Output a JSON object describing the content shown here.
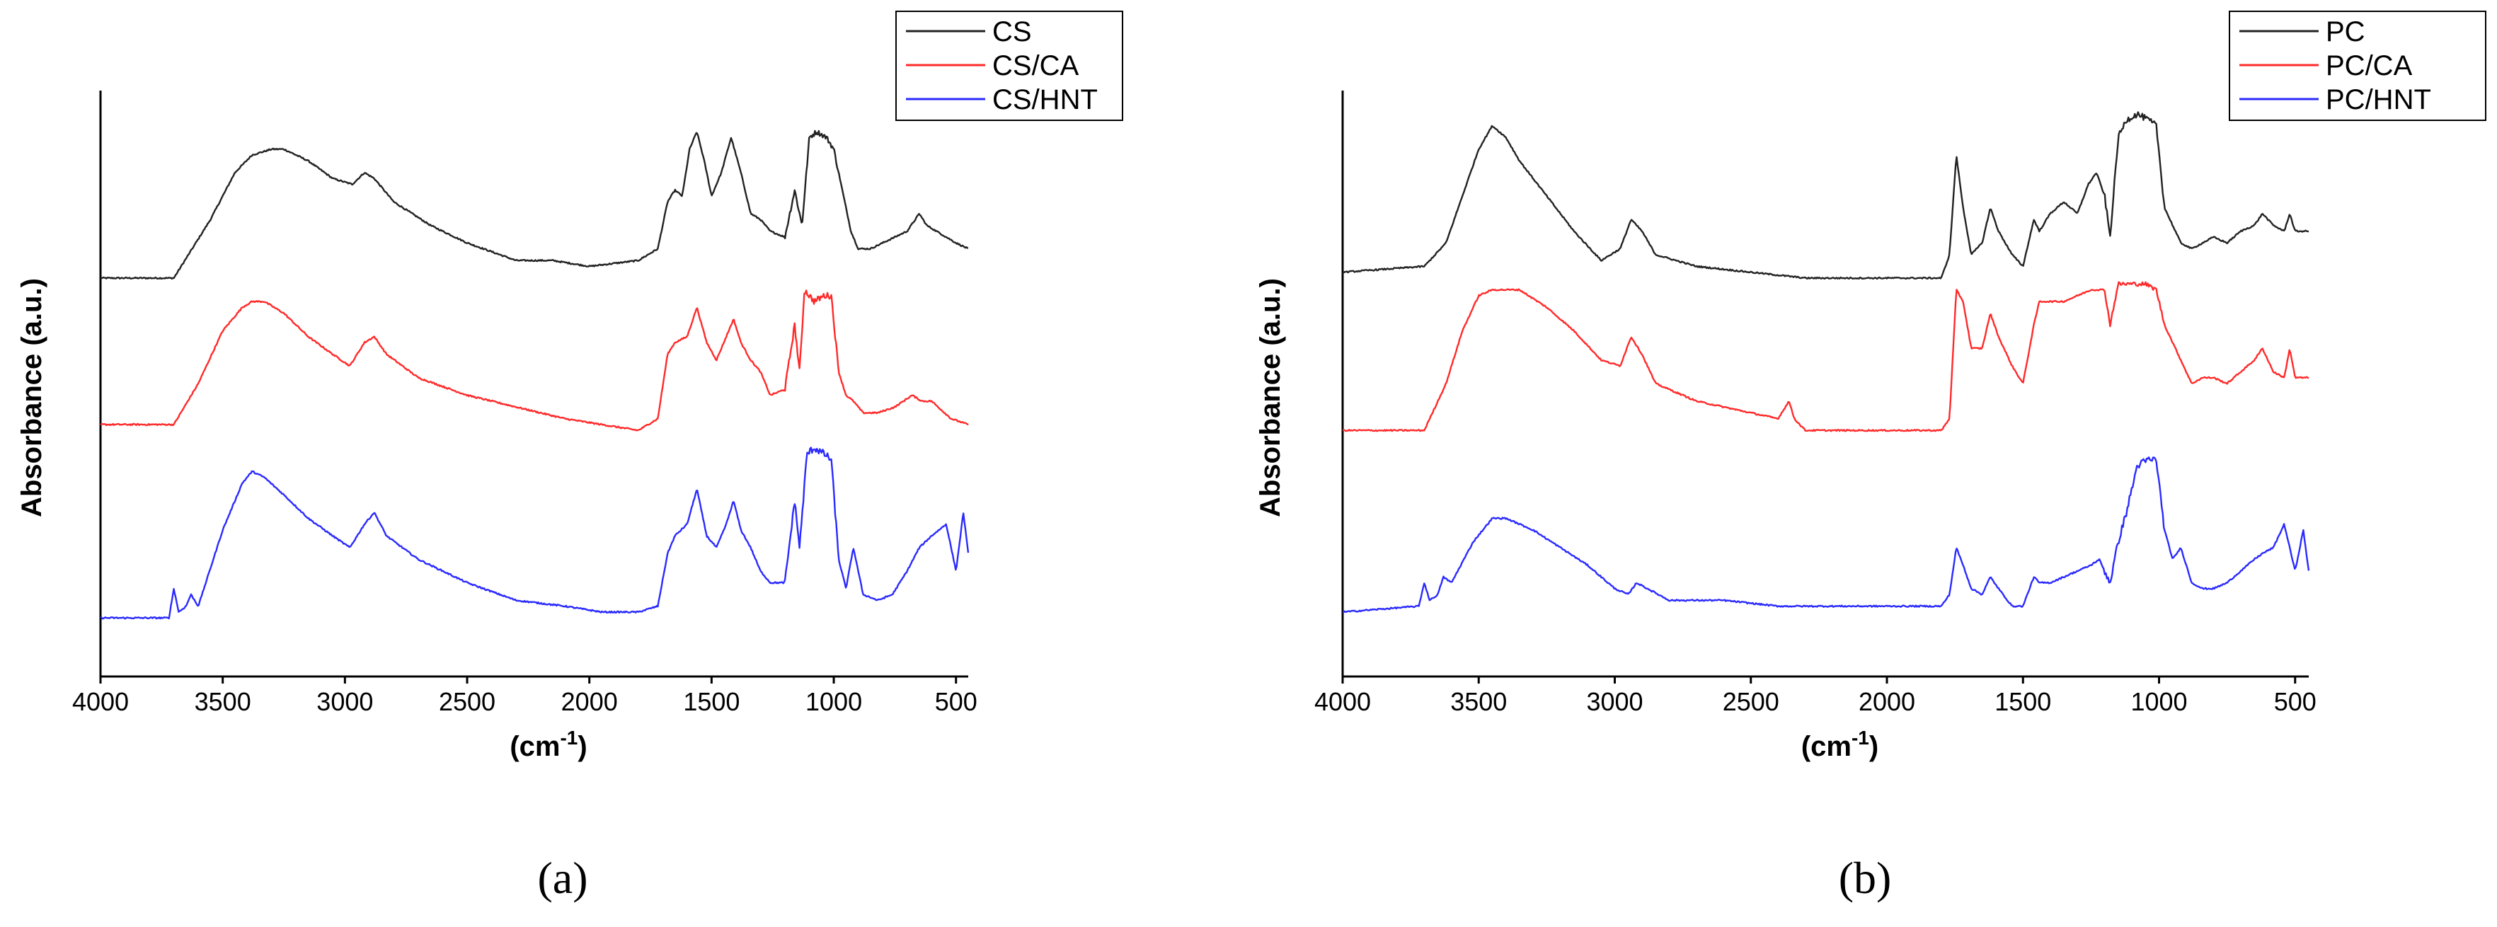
{
  "colors": {
    "black": "#222222",
    "red": "#ff2a2a",
    "blue": "#2a2aff"
  },
  "chart_data": [
    {
      "type": "line",
      "panel_label": "(a)",
      "xlabel": "(cm-1)",
      "ylabel": "Absorbance (a.u.)",
      "xlim": [
        4000,
        450
      ],
      "x_reversed": true,
      "xticks": [
        4000,
        3500,
        3000,
        2500,
        2000,
        1500,
        1000,
        500
      ],
      "ylim": [
        0,
        1
      ],
      "yticks": [],
      "legend_position": "top-right",
      "series": [
        {
          "name": "CS",
          "color": "#222222",
          "noise": 0.025,
          "x": [
            4000,
            3700,
            3550,
            3450,
            3380,
            3300,
            3250,
            3150,
            3050,
            2970,
            2920,
            2880,
            2800,
            2650,
            2500,
            2300,
            2150,
            2000,
            1800,
            1720,
            1680,
            1650,
            1620,
            1590,
            1560,
            1530,
            1500,
            1460,
            1420,
            1380,
            1340,
            1300,
            1260,
            1200,
            1160,
            1130,
            1100,
            1070,
            1030,
            1000,
            970,
            930,
            900,
            850,
            800,
            700,
            650,
            620,
            580,
            500,
            450
          ],
          "y": [
            0.68,
            0.68,
            0.78,
            0.86,
            0.89,
            0.9,
            0.9,
            0.88,
            0.85,
            0.84,
            0.86,
            0.85,
            0.81,
            0.77,
            0.74,
            0.71,
            0.71,
            0.7,
            0.71,
            0.73,
            0.81,
            0.83,
            0.82,
            0.9,
            0.93,
            0.88,
            0.82,
            0.86,
            0.92,
            0.86,
            0.79,
            0.78,
            0.76,
            0.75,
            0.83,
            0.77,
            0.92,
            0.93,
            0.92,
            0.9,
            0.84,
            0.76,
            0.73,
            0.73,
            0.74,
            0.76,
            0.79,
            0.77,
            0.76,
            0.74,
            0.73
          ]
        },
        {
          "name": "CS/CA",
          "color": "#ff2a2a",
          "noise": 0.03,
          "x": [
            4000,
            3700,
            3600,
            3500,
            3420,
            3380,
            3330,
            3250,
            3150,
            3050,
            2980,
            2920,
            2880,
            2830,
            2700,
            2500,
            2300,
            2100,
            1950,
            1800,
            1720,
            1680,
            1650,
            1600,
            1560,
            1520,
            1480,
            1440,
            1410,
            1380,
            1340,
            1300,
            1260,
            1200,
            1160,
            1140,
            1120,
            1080,
            1040,
            1010,
            980,
            950,
            920,
            880,
            820,
            750,
            680,
            640,
            600,
            520,
            450
          ],
          "y": [
            0.43,
            0.43,
            0.5,
            0.59,
            0.63,
            0.64,
            0.64,
            0.62,
            0.58,
            0.55,
            0.53,
            0.57,
            0.58,
            0.55,
            0.51,
            0.48,
            0.46,
            0.44,
            0.43,
            0.42,
            0.44,
            0.55,
            0.57,
            0.58,
            0.63,
            0.57,
            0.54,
            0.58,
            0.61,
            0.57,
            0.54,
            0.52,
            0.48,
            0.49,
            0.6,
            0.52,
            0.66,
            0.64,
            0.65,
            0.65,
            0.52,
            0.48,
            0.47,
            0.45,
            0.45,
            0.46,
            0.48,
            0.47,
            0.47,
            0.44,
            0.43
          ]
        },
        {
          "name": "CS/HNT",
          "color": "#2a2aff",
          "noise": 0.035,
          "x": [
            4000,
            3720,
            3700,
            3680,
            3650,
            3630,
            3600,
            3500,
            3420,
            3380,
            3330,
            3250,
            3150,
            3050,
            2980,
            2920,
            2880,
            2830,
            2700,
            2500,
            2300,
            2100,
            1950,
            1800,
            1720,
            1680,
            1650,
            1600,
            1560,
            1520,
            1480,
            1440,
            1410,
            1380,
            1340,
            1300,
            1260,
            1200,
            1160,
            1140,
            1110,
            1080,
            1040,
            1010,
            980,
            950,
            920,
            880,
            820,
            760,
            700,
            650,
            600,
            540,
            500,
            470,
            450
          ],
          "y": [
            0.1,
            0.1,
            0.15,
            0.11,
            0.12,
            0.14,
            0.12,
            0.25,
            0.33,
            0.35,
            0.34,
            0.31,
            0.27,
            0.24,
            0.22,
            0.26,
            0.28,
            0.24,
            0.2,
            0.16,
            0.13,
            0.12,
            0.11,
            0.11,
            0.12,
            0.21,
            0.24,
            0.26,
            0.32,
            0.24,
            0.22,
            0.26,
            0.3,
            0.25,
            0.22,
            0.18,
            0.16,
            0.16,
            0.3,
            0.22,
            0.38,
            0.39,
            0.38,
            0.37,
            0.2,
            0.15,
            0.22,
            0.14,
            0.13,
            0.14,
            0.18,
            0.22,
            0.24,
            0.26,
            0.18,
            0.28,
            0.21
          ]
        }
      ]
    },
    {
      "type": "line",
      "panel_label": "(b)",
      "xlabel": "(cm-1)",
      "ylabel": "Absorbance (a.u.)",
      "xlim": [
        4000,
        450
      ],
      "x_reversed": true,
      "xticks": [
        4000,
        3500,
        3000,
        2500,
        2000,
        1500,
        1000,
        500
      ],
      "ylim": [
        0,
        1
      ],
      "yticks": [],
      "legend_position": "top-right",
      "series": [
        {
          "name": "PC",
          "color": "#222222",
          "noise": 0.03,
          "x": [
            4000,
            3700,
            3620,
            3560,
            3500,
            3450,
            3400,
            3350,
            3250,
            3150,
            3050,
            2980,
            2940,
            2900,
            2850,
            2700,
            2500,
            2300,
            2100,
            1900,
            1800,
            1770,
            1745,
            1720,
            1690,
            1650,
            1620,
            1590,
            1540,
            1500,
            1460,
            1440,
            1400,
            1350,
            1300,
            1260,
            1230,
            1200,
            1180,
            1150,
            1120,
            1080,
            1040,
            1010,
            980,
            950,
            920,
            880,
            840,
            800,
            750,
            700,
            650,
            620,
            580,
            540,
            520,
            500,
            450
          ],
          "y": [
            0.69,
            0.7,
            0.74,
            0.82,
            0.9,
            0.94,
            0.92,
            0.88,
            0.82,
            0.76,
            0.71,
            0.73,
            0.78,
            0.76,
            0.72,
            0.7,
            0.69,
            0.68,
            0.68,
            0.68,
            0.68,
            0.72,
            0.89,
            0.8,
            0.72,
            0.74,
            0.8,
            0.76,
            0.72,
            0.7,
            0.78,
            0.76,
            0.79,
            0.81,
            0.79,
            0.84,
            0.86,
            0.82,
            0.75,
            0.92,
            0.95,
            0.96,
            0.95,
            0.94,
            0.8,
            0.77,
            0.74,
            0.73,
            0.74,
            0.75,
            0.74,
            0.76,
            0.77,
            0.79,
            0.77,
            0.76,
            0.79,
            0.76,
            0.76
          ]
        },
        {
          "name": "PC/CA",
          "color": "#ff2a2a",
          "noise": 0.02,
          "x": [
            4000,
            3700,
            3620,
            3560,
            3500,
            3450,
            3400,
            3350,
            3250,
            3150,
            3050,
            2980,
            2940,
            2900,
            2850,
            2700,
            2500,
            2400,
            2360,
            2340,
            2320,
            2300,
            2200,
            2000,
            1800,
            1770,
            1745,
            1720,
            1690,
            1650,
            1620,
            1590,
            1540,
            1500,
            1460,
            1440,
            1400,
            1350,
            1300,
            1250,
            1200,
            1180,
            1150,
            1100,
            1050,
            1010,
            980,
            950,
            920,
            880,
            840,
            800,
            750,
            700,
            650,
            620,
            580,
            540,
            520,
            500,
            450
          ],
          "y": [
            0.42,
            0.42,
            0.5,
            0.59,
            0.65,
            0.66,
            0.66,
            0.66,
            0.63,
            0.59,
            0.54,
            0.53,
            0.58,
            0.55,
            0.5,
            0.47,
            0.45,
            0.44,
            0.47,
            0.44,
            0.43,
            0.42,
            0.42,
            0.42,
            0.42,
            0.44,
            0.66,
            0.64,
            0.56,
            0.56,
            0.62,
            0.58,
            0.53,
            0.5,
            0.6,
            0.64,
            0.64,
            0.64,
            0.65,
            0.66,
            0.66,
            0.6,
            0.67,
            0.67,
            0.67,
            0.66,
            0.6,
            0.57,
            0.54,
            0.5,
            0.51,
            0.51,
            0.5,
            0.52,
            0.54,
            0.56,
            0.52,
            0.51,
            0.56,
            0.51,
            0.51
          ]
        },
        {
          "name": "PC/HNT",
          "color": "#2a2aff",
          "noise": 0.035,
          "x": [
            4000,
            3720,
            3700,
            3680,
            3650,
            3630,
            3600,
            3520,
            3450,
            3400,
            3300,
            3200,
            3100,
            3000,
            2950,
            2920,
            2880,
            2800,
            2600,
            2400,
            2200,
            2000,
            1800,
            1770,
            1745,
            1720,
            1690,
            1650,
            1620,
            1590,
            1540,
            1500,
            1460,
            1440,
            1400,
            1350,
            1300,
            1250,
            1220,
            1200,
            1180,
            1150,
            1120,
            1080,
            1040,
            1010,
            980,
            950,
            920,
            880,
            840,
            800,
            750,
            700,
            650,
            620,
            580,
            540,
            520,
            500,
            470,
            450
          ],
          "y": [
            0.11,
            0.12,
            0.16,
            0.13,
            0.14,
            0.17,
            0.16,
            0.23,
            0.27,
            0.27,
            0.25,
            0.22,
            0.19,
            0.15,
            0.14,
            0.16,
            0.15,
            0.13,
            0.13,
            0.12,
            0.12,
            0.12,
            0.12,
            0.14,
            0.22,
            0.19,
            0.15,
            0.14,
            0.17,
            0.15,
            0.12,
            0.12,
            0.17,
            0.16,
            0.16,
            0.17,
            0.18,
            0.19,
            0.2,
            0.18,
            0.16,
            0.23,
            0.28,
            0.36,
            0.37,
            0.37,
            0.25,
            0.2,
            0.22,
            0.16,
            0.15,
            0.15,
            0.16,
            0.18,
            0.2,
            0.21,
            0.22,
            0.26,
            0.22,
            0.18,
            0.25,
            0.18
          ]
        }
      ]
    }
  ]
}
